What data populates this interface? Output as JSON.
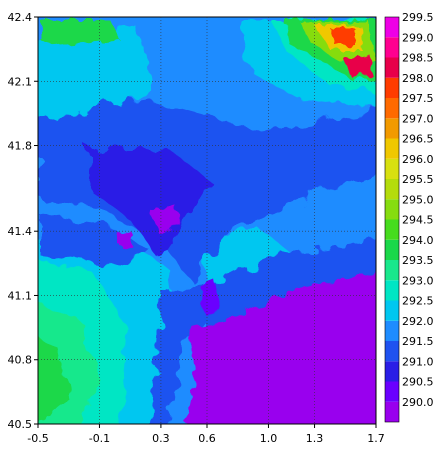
{
  "chart_data": {
    "type": "heatmap",
    "title": "",
    "xlabel": "",
    "ylabel": "",
    "xlim": [
      -0.5,
      1.7
    ],
    "ylim": [
      40.5,
      42.4
    ],
    "x_ticks": [
      "-0.5",
      "-0.1",
      "0.3",
      "0.6",
      "1.0",
      "1.3",
      "1.7"
    ],
    "y_ticks": [
      "42.4",
      "42.1",
      "41.8",
      "41.4",
      "41.1",
      "40.8",
      "40.5"
    ],
    "grid": "dotted",
    "colorbar": {
      "labels": [
        "290.0",
        "290.5",
        "291.0",
        "291.5",
        "292.0",
        "292.5",
        "293.0",
        "293.5",
        "294.0",
        "294.5",
        "295.0",
        "295.5",
        "296.0",
        "296.5",
        "297.0",
        "297.5",
        "298.0",
        "298.5",
        "299.0",
        "299.5"
      ],
      "colors": [
        "#9900ee",
        "#6a00ff",
        "#2a1ee6",
        "#1f52f0",
        "#1e8cff",
        "#00c7f0",
        "#00e6c4",
        "#18e88c",
        "#1ad84a",
        "#46dc1e",
        "#86dc10",
        "#b4dc0c",
        "#d8e010",
        "#f0c800",
        "#f29a00",
        "#ff6a00",
        "#ff3c00",
        "#e8004a",
        "#ff0090",
        "#ee00e6"
      ]
    },
    "note_values": "field of values 290.0-299.5; lowest (about 290) over the sea in the south-east, highest (about 299) over the mountains in the far north-east"
  }
}
